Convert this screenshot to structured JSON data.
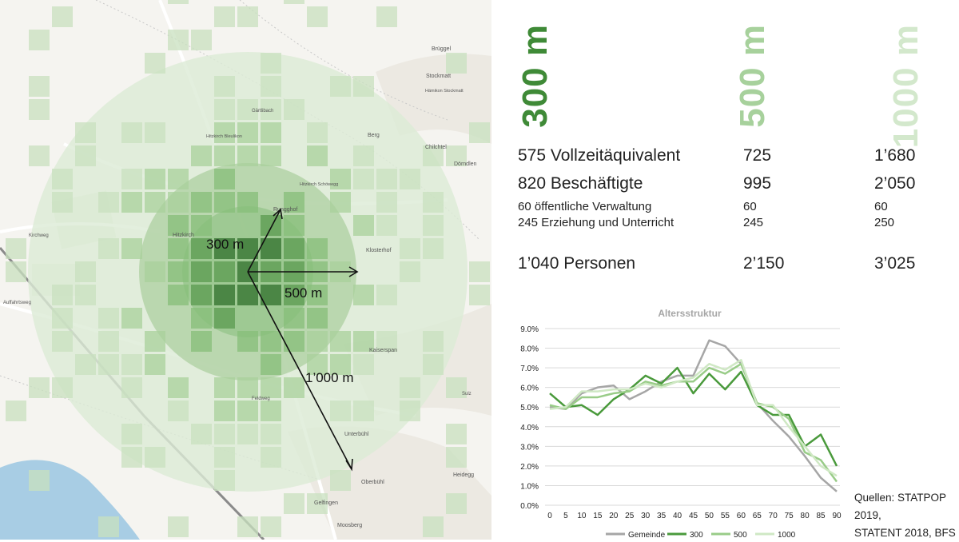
{
  "map": {
    "labels": {
      "radius_300": "300 m",
      "radius_500": "500 m",
      "radius_1000": "1’000 m"
    },
    "places": [
      "Brüggel",
      "Stockmatt",
      "Hämikon Stockmatt",
      "Berg",
      "Chilchtel",
      "Dörndlen",
      "Rungghof",
      "Klosterhof",
      "Kaiserspan",
      "Hitzkirch",
      "Unterbühl",
      "Oberbühl",
      "Heidegg",
      "Gelfingen",
      "Moosberg",
      "Kirchweg",
      "Auffahrtsweg",
      "Feldweg",
      "Gärtlibach",
      "Hitzkirch Bleulikon",
      "Hitzkirch Schöwegg",
      "Sulz"
    ],
    "colors": {
      "ring_1000": "#dcebd6",
      "ring_500": "#a9cd9d",
      "ring_300": "#8cbf80",
      "arrow": "#111111"
    }
  },
  "headers": {
    "r300": {
      "label": "300 m",
      "color": "#3f8a37"
    },
    "r500": {
      "label": "500 m",
      "color": "#a7d19c"
    },
    "r1000": {
      "label": "1000 m",
      "color": "#d3e8cc"
    }
  },
  "stats": {
    "fte": {
      "c1": "575 Vollzeitäquivalent",
      "c2": "725",
      "c3": "1’680"
    },
    "employees": {
      "c1": "820 Beschäftigte",
      "c2": "995",
      "c3": "2’050"
    },
    "public_admin": {
      "c1": "60 öffentliche Verwaltung",
      "c2": "60",
      "c3": "60"
    },
    "education": {
      "c1": "245 Erziehung und Unterricht",
      "c2": "245",
      "c3": "250"
    },
    "persons": {
      "c1": "1’040 Personen",
      "c2": "2’150",
      "c3": "3’025"
    }
  },
  "chart_data": {
    "type": "line",
    "title": "Altersstruktur",
    "x": [
      0,
      5,
      10,
      15,
      20,
      25,
      30,
      35,
      40,
      45,
      50,
      55,
      60,
      65,
      70,
      75,
      80,
      85,
      90
    ],
    "ylim": [
      0,
      9
    ],
    "yticks": [
      "0.0%",
      "1.0%",
      "2.0%",
      "3.0%",
      "4.0%",
      "5.0%",
      "6.0%",
      "7.0%",
      "8.0%",
      "9.0%"
    ],
    "grid": true,
    "legend_position": "bottom",
    "series": [
      {
        "name": "Gemeinde",
        "color": "#a6a6a6",
        "width": 2.5,
        "values": [
          5.0,
          4.9,
          5.7,
          6.0,
          6.1,
          5.4,
          5.8,
          6.3,
          6.6,
          6.6,
          8.4,
          8.1,
          7.2,
          5.2,
          4.3,
          3.5,
          2.5,
          1.4,
          0.7
        ]
      },
      {
        "name": "300",
        "color": "#4a9a3c",
        "width": 2.5,
        "values": [
          5.7,
          5.0,
          5.1,
          4.6,
          5.4,
          5.9,
          6.6,
          6.2,
          7.0,
          5.7,
          6.7,
          5.9,
          6.8,
          5.1,
          4.6,
          4.6,
          3.0,
          3.6,
          2.0
        ]
      },
      {
        "name": "500",
        "color": "#99cc88",
        "width": 2.5,
        "values": [
          5.1,
          4.9,
          5.5,
          5.5,
          5.7,
          5.8,
          6.3,
          6.1,
          6.3,
          6.3,
          7.0,
          6.7,
          7.2,
          5.2,
          5.0,
          4.4,
          2.7,
          2.3,
          1.2
        ]
      },
      {
        "name": "1000",
        "color": "#cfe8c4",
        "width": 2.5,
        "values": [
          4.9,
          5.0,
          5.8,
          5.8,
          5.9,
          5.9,
          6.2,
          6.0,
          6.3,
          6.5,
          7.2,
          6.9,
          7.4,
          5.1,
          5.1,
          4.0,
          3.0,
          2.0,
          1.5
        ]
      }
    ]
  },
  "sources": {
    "line1": "Quellen: STATPOP 2019,",
    "line2": "STATENT 2018, BFS"
  }
}
